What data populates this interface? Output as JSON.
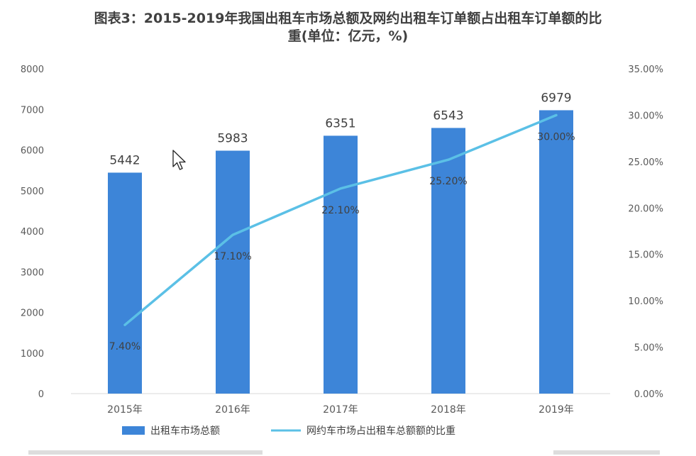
{
  "title": {
    "line1": "图表3：2015-2019年我国出租车市场总额及网约出租车订单额占出租车订单额的比",
    "line2": "重(单位：亿元，%)"
  },
  "colors": {
    "bar": "#3d85d8",
    "line": "#5bc0e6",
    "axis_text": "#595959",
    "axis_line": "#d9d9d9"
  },
  "icons": {
    "cursor": "mouse-pointer-icon"
  },
  "chart_data": {
    "type": "bar",
    "categories": [
      "2015年",
      "2016年",
      "2017年",
      "2018年",
      "2019年"
    ],
    "series": [
      {
        "name": "出租车市场总额",
        "type": "bar",
        "axis": "left",
        "values": [
          5442,
          5983,
          6351,
          6543,
          6979
        ],
        "labels": [
          "5442",
          "5983",
          "6351",
          "6543",
          "6979"
        ]
      },
      {
        "name": "网约车市场占出租车总额额的比重",
        "type": "line",
        "axis": "right",
        "values": [
          7.4,
          17.1,
          22.1,
          25.2,
          30.0
        ],
        "labels": [
          "7.40%",
          "17.10%",
          "22.10%",
          "25.20%",
          "30.00%"
        ]
      }
    ],
    "left_axis": {
      "range": [
        0,
        8000
      ],
      "ticks": [
        "0",
        "1000",
        "2000",
        "3000",
        "4000",
        "5000",
        "6000",
        "7000",
        "8000"
      ]
    },
    "right_axis": {
      "range": [
        0,
        35
      ],
      "ticks": [
        "0.00%",
        "5.00%",
        "10.00%",
        "15.00%",
        "20.00%",
        "25.00%",
        "30.00%",
        "35.00%"
      ]
    },
    "grid": false,
    "legend": "bottom"
  }
}
